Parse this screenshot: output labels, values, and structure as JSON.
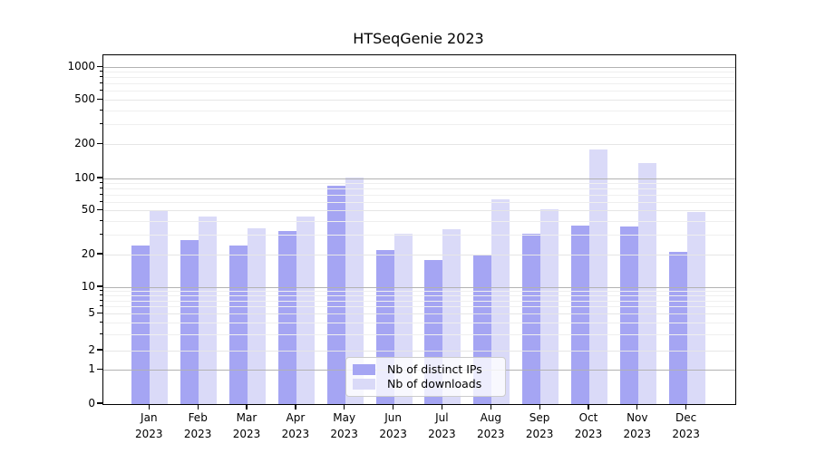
{
  "figure": {
    "title": "HTSeqGenie 2023"
  },
  "chart_data": {
    "type": "bar",
    "title": "HTSeqGenie 2023",
    "categories": [
      "Jan",
      "Feb",
      "Mar",
      "Apr",
      "May",
      "Jun",
      "Jul",
      "Aug",
      "Sep",
      "Oct",
      "Nov",
      "Dec"
    ],
    "category_year": "2023",
    "series": [
      {
        "name": "Nb of distinct IPs",
        "color": "#a5a5f3",
        "values": [
          24,
          27,
          24,
          33,
          86,
          22,
          18,
          20,
          31,
          37,
          36,
          21
        ]
      },
      {
        "name": "Nb of downloads",
        "color": "#dadaf8",
        "values": [
          50,
          44,
          35,
          44,
          101,
          31,
          34,
          64,
          52,
          180,
          138,
          49
        ]
      }
    ],
    "xlabel": "",
    "ylabel": "",
    "yscale": "asinh-log",
    "y_ticks": [
      0,
      1,
      2,
      5,
      10,
      20,
      50,
      100,
      200,
      500,
      1000
    ],
    "ylim": [
      0,
      1280
    ],
    "grid": "both, drawn over bars",
    "grid_major_color": "#b2b2b2",
    "grid_minor_color": "#efefef",
    "legend_position": "lower center"
  }
}
